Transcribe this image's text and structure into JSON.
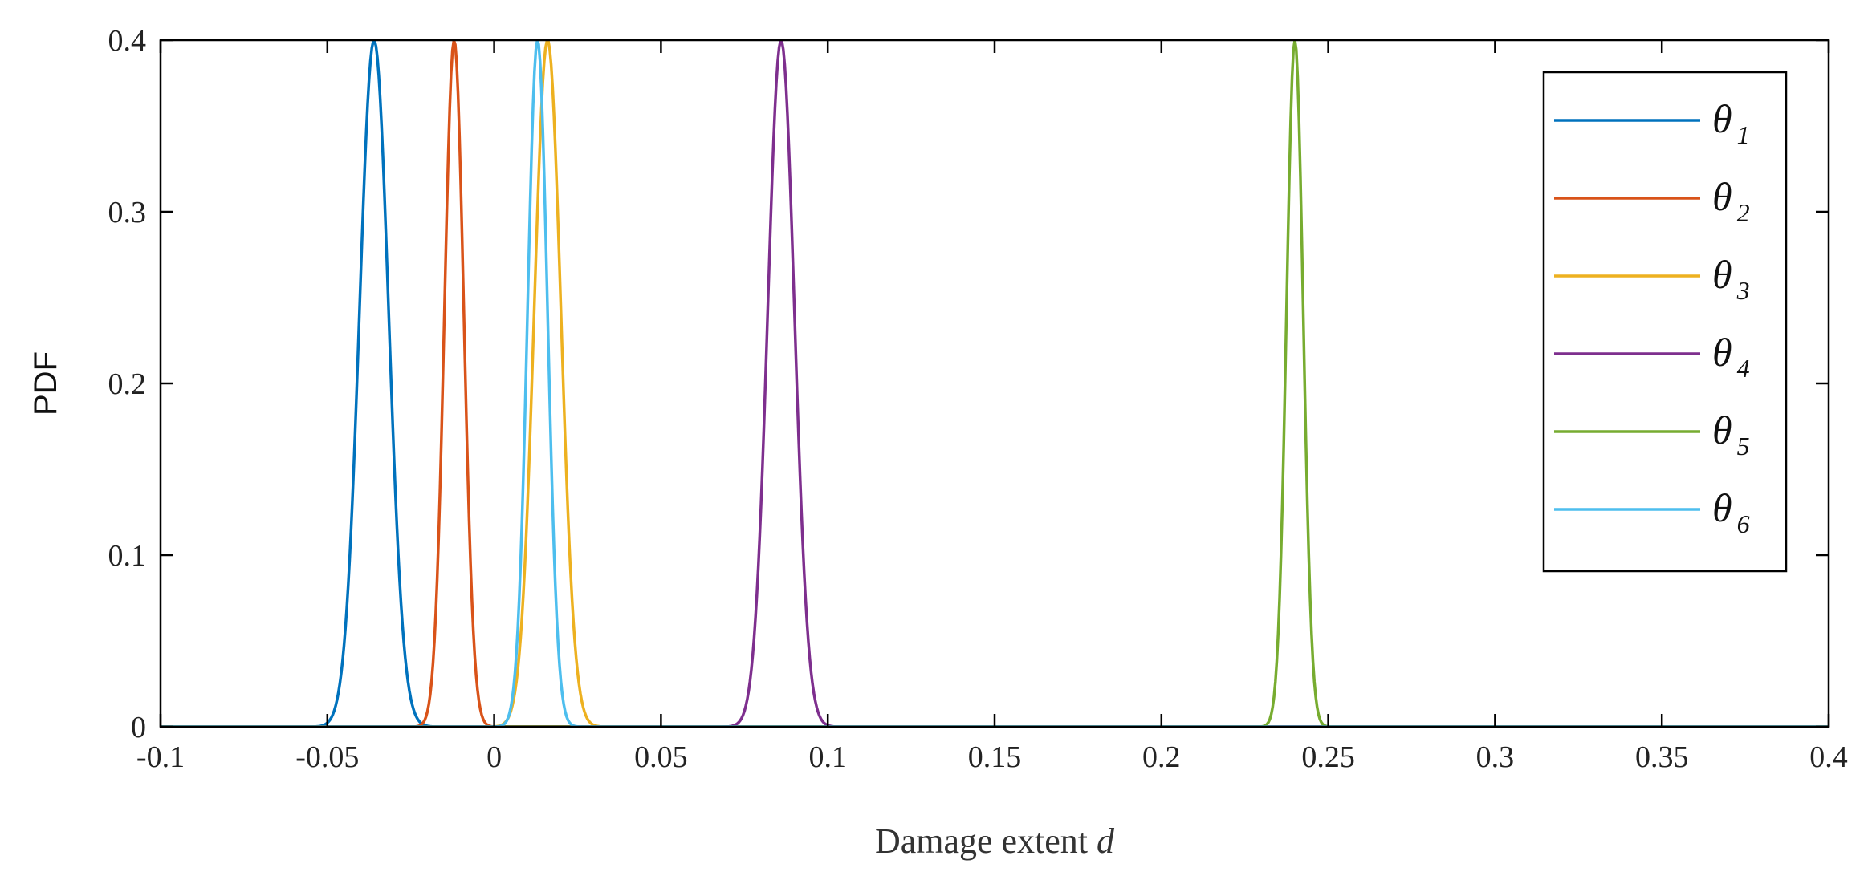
{
  "chart_data": {
    "type": "line",
    "title": "",
    "xlabel": "Damage extent",
    "xlabel_var": "d",
    "ylabel": "PDF",
    "xlim": [
      -0.1,
      0.4
    ],
    "ylim": [
      0,
      0.4
    ],
    "xticks": [
      "-0.1",
      "-0.05",
      "0",
      "0.05",
      "0.1",
      "0.15",
      "0.2",
      "0.25",
      "0.3",
      "0.35",
      "0.4"
    ],
    "xtick_values": [
      -0.1,
      -0.05,
      0,
      0.05,
      0.1,
      0.15,
      0.2,
      0.25,
      0.3,
      0.35,
      0.4
    ],
    "yticks": [
      "0",
      "0.1",
      "0.2",
      "0.3",
      "0.4"
    ],
    "ytick_values": [
      0,
      0.1,
      0.2,
      0.3,
      0.4
    ],
    "grid": false,
    "legend_position": "top-right",
    "series": [
      {
        "name": "θ",
        "subscript": "1",
        "color": "#0072BD",
        "mean": -0.036,
        "sigma": 0.00436,
        "peak": 0.4
      },
      {
        "name": "θ",
        "subscript": "2",
        "color": "#D95319",
        "mean": -0.012,
        "sigma": 0.0029,
        "peak": 0.4
      },
      {
        "name": "θ",
        "subscript": "3",
        "color": "#EDB120",
        "mean": 0.016,
        "sigma": 0.004,
        "peak": 0.4
      },
      {
        "name": "θ",
        "subscript": "4",
        "color": "#7E2F8E",
        "mean": 0.086,
        "sigma": 0.004,
        "peak": 0.4
      },
      {
        "name": "θ",
        "subscript": "5",
        "color": "#77AC30",
        "mean": 0.24,
        "sigma": 0.0025,
        "peak": 0.4
      },
      {
        "name": "θ",
        "subscript": "6",
        "color": "#4DBEEE",
        "mean": 0.013,
        "sigma": 0.003,
        "peak": 0.4
      }
    ]
  }
}
